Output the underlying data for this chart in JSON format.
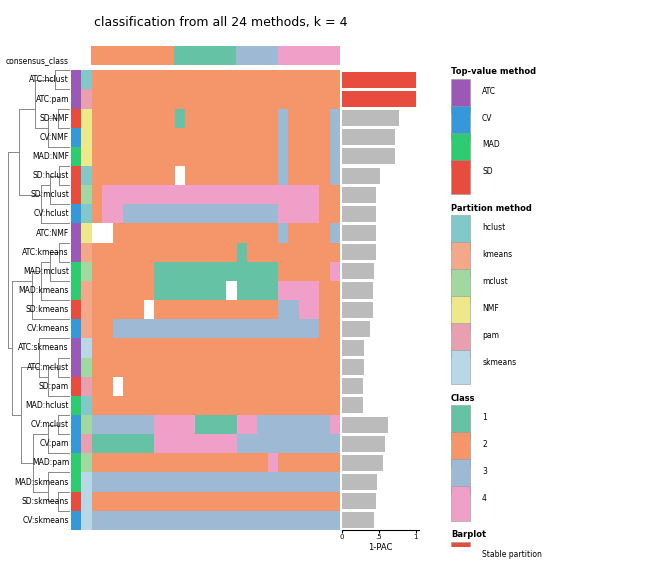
{
  "title": "classification from all 24 methods, k = 4",
  "row_labels": [
    "ATC:hclust",
    "ATC:pam",
    "SD:NMF",
    "CV:NMF",
    "MAD:NMF",
    "SD:hclust",
    "SD:mclust",
    "CV:hclust",
    "ATC:NMF",
    "ATC:kmeans",
    "MAD:mclust",
    "MAD:kmeans",
    "SD:kmeans",
    "CV:kmeans",
    "ATC:skmeans",
    "ATC:mclust",
    "SD:pam",
    "MAD:hclust",
    "CV:mclust",
    "CV:pam",
    "MAD:pam",
    "MAD:skmeans",
    "SD:skmeans",
    "CV:skmeans"
  ],
  "top_value_colors": [
    "#9B59B6",
    "#9B59B6",
    "#E74C3C",
    "#3498DB",
    "#2ECC71",
    "#E74C3C",
    "#E74C3C",
    "#3498DB",
    "#9B59B6",
    "#9B59B6",
    "#2ECC71",
    "#2ECC71",
    "#E74C3C",
    "#3498DB",
    "#9B59B6",
    "#9B59B6",
    "#E74C3C",
    "#2ECC71",
    "#3498DB",
    "#3498DB",
    "#2ECC71",
    "#2ECC71",
    "#E74C3C",
    "#3498DB"
  ],
  "partition_colors": [
    "#82C8C8",
    "#E8A0B0",
    "#EDE88A",
    "#EDE88A",
    "#EDE88A",
    "#82C8C8",
    "#A0D8A0",
    "#82C8C8",
    "#EDE88A",
    "#F4A88A",
    "#A0D8A0",
    "#F4A88A",
    "#F4A88A",
    "#F4A88A",
    "#B8D8E8",
    "#A0D8A0",
    "#E8A0B0",
    "#82C8C8",
    "#A0D8A0",
    "#E8A0B0",
    "#A0D8A0",
    "#B8D8E8",
    "#B8D8E8",
    "#B8D8E8"
  ],
  "class_color_map": {
    "0": "#FFFFFF",
    "1": "#66C2A5",
    "2": "#F4956A",
    "3": "#9EB9D4",
    "4": "#F0A0C8"
  },
  "consensus_row": [
    2,
    2,
    2,
    2,
    2,
    2,
    2,
    2,
    1,
    1,
    1,
    1,
    1,
    1,
    3,
    3,
    3,
    3,
    4,
    4,
    4,
    4,
    4,
    4
  ],
  "heatmap_data": [
    [
      2,
      2,
      2,
      2,
      2,
      2,
      2,
      2,
      2,
      2,
      2,
      2,
      2,
      2,
      2,
      2,
      2,
      2,
      2,
      2,
      2,
      2,
      2,
      2
    ],
    [
      2,
      2,
      2,
      2,
      2,
      2,
      2,
      2,
      2,
      2,
      2,
      2,
      2,
      2,
      2,
      2,
      2,
      2,
      2,
      2,
      2,
      2,
      2,
      2
    ],
    [
      2,
      2,
      2,
      2,
      2,
      2,
      2,
      2,
      1,
      2,
      2,
      2,
      2,
      2,
      2,
      2,
      2,
      2,
      3,
      2,
      2,
      2,
      2,
      3
    ],
    [
      2,
      2,
      2,
      2,
      2,
      2,
      2,
      2,
      2,
      2,
      2,
      2,
      2,
      2,
      2,
      2,
      2,
      2,
      3,
      2,
      2,
      2,
      2,
      3
    ],
    [
      2,
      2,
      2,
      2,
      2,
      2,
      2,
      2,
      2,
      2,
      2,
      2,
      2,
      2,
      2,
      2,
      2,
      2,
      3,
      2,
      2,
      2,
      2,
      3
    ],
    [
      2,
      2,
      2,
      2,
      2,
      2,
      2,
      2,
      0,
      2,
      2,
      2,
      2,
      2,
      2,
      2,
      2,
      2,
      3,
      2,
      2,
      2,
      2,
      3
    ],
    [
      2,
      4,
      4,
      4,
      4,
      4,
      4,
      4,
      4,
      4,
      4,
      4,
      4,
      4,
      4,
      4,
      4,
      4,
      4,
      4,
      4,
      4,
      2,
      2
    ],
    [
      2,
      4,
      4,
      3,
      3,
      3,
      3,
      3,
      3,
      3,
      3,
      3,
      3,
      3,
      3,
      3,
      3,
      3,
      4,
      4,
      4,
      4,
      2,
      2
    ],
    [
      0,
      0,
      2,
      2,
      2,
      2,
      2,
      2,
      2,
      2,
      2,
      2,
      2,
      2,
      2,
      2,
      2,
      2,
      3,
      2,
      2,
      2,
      2,
      3
    ],
    [
      2,
      2,
      2,
      2,
      2,
      2,
      2,
      2,
      2,
      2,
      2,
      2,
      2,
      2,
      1,
      2,
      2,
      2,
      2,
      2,
      2,
      2,
      2,
      2
    ],
    [
      2,
      2,
      2,
      2,
      2,
      2,
      1,
      1,
      1,
      1,
      1,
      1,
      1,
      1,
      1,
      1,
      1,
      1,
      2,
      2,
      2,
      2,
      2,
      4
    ],
    [
      2,
      2,
      2,
      2,
      2,
      2,
      1,
      1,
      1,
      1,
      1,
      1,
      1,
      0,
      1,
      1,
      1,
      1,
      4,
      4,
      4,
      4,
      2,
      2
    ],
    [
      2,
      2,
      2,
      2,
      2,
      0,
      2,
      2,
      2,
      2,
      2,
      2,
      2,
      2,
      2,
      2,
      2,
      2,
      3,
      3,
      4,
      4,
      2,
      2
    ],
    [
      2,
      2,
      3,
      3,
      3,
      3,
      3,
      3,
      3,
      3,
      3,
      3,
      3,
      3,
      3,
      3,
      3,
      3,
      3,
      3,
      3,
      3,
      2,
      2
    ],
    [
      2,
      2,
      2,
      2,
      2,
      2,
      2,
      2,
      2,
      2,
      2,
      2,
      2,
      2,
      2,
      2,
      2,
      2,
      2,
      2,
      2,
      2,
      2,
      2
    ],
    [
      2,
      2,
      2,
      2,
      2,
      2,
      2,
      2,
      2,
      2,
      2,
      2,
      2,
      2,
      2,
      2,
      2,
      2,
      2,
      2,
      2,
      2,
      2,
      2
    ],
    [
      2,
      2,
      0,
      2,
      2,
      2,
      2,
      2,
      2,
      2,
      2,
      2,
      2,
      2,
      2,
      2,
      2,
      2,
      2,
      2,
      2,
      2,
      2,
      2
    ],
    [
      2,
      2,
      2,
      2,
      2,
      2,
      2,
      2,
      2,
      2,
      2,
      2,
      2,
      2,
      2,
      2,
      2,
      2,
      2,
      2,
      2,
      2,
      2,
      2
    ],
    [
      3,
      3,
      3,
      3,
      3,
      3,
      4,
      4,
      4,
      4,
      1,
      1,
      1,
      1,
      4,
      4,
      3,
      3,
      3,
      3,
      3,
      3,
      3,
      4
    ],
    [
      1,
      1,
      1,
      1,
      1,
      1,
      4,
      4,
      4,
      4,
      4,
      4,
      4,
      4,
      3,
      3,
      3,
      3,
      3,
      3,
      3,
      3,
      3,
      3
    ],
    [
      2,
      2,
      2,
      2,
      2,
      2,
      2,
      2,
      2,
      2,
      2,
      2,
      2,
      2,
      2,
      2,
      2,
      4,
      2,
      2,
      2,
      2,
      2,
      2
    ],
    [
      3,
      3,
      3,
      3,
      3,
      3,
      3,
      3,
      3,
      3,
      3,
      3,
      3,
      3,
      3,
      3,
      3,
      3,
      3,
      3,
      3,
      3,
      3,
      3
    ],
    [
      2,
      2,
      2,
      2,
      2,
      2,
      2,
      2,
      2,
      2,
      2,
      2,
      2,
      2,
      2,
      2,
      2,
      2,
      2,
      2,
      2,
      2,
      2,
      2
    ],
    [
      3,
      3,
      3,
      3,
      3,
      3,
      3,
      3,
      3,
      3,
      3,
      3,
      3,
      3,
      3,
      3,
      3,
      3,
      3,
      3,
      3,
      3,
      3,
      3
    ]
  ],
  "pac_values": [
    1.0,
    1.0,
    0.78,
    0.72,
    0.72,
    0.52,
    0.46,
    0.46,
    0.46,
    0.46,
    0.44,
    0.42,
    0.42,
    0.38,
    0.3,
    0.3,
    0.28,
    0.28,
    0.62,
    0.58,
    0.55,
    0.48,
    0.46,
    0.44
  ],
  "pac_stable": [
    true,
    true,
    false,
    false,
    false,
    false,
    false,
    false,
    false,
    false,
    false,
    false,
    false,
    false,
    false,
    false,
    false,
    false,
    false,
    false,
    false,
    false,
    false,
    false
  ],
  "top_value_legend": {
    "ATC": "#9B59B6",
    "CV": "#3498DB",
    "MAD": "#2ECC71",
    "SD": "#E74C3C"
  },
  "partition_legend": {
    "hclust": "#82C8C8",
    "kmeans": "#F4A88A",
    "mclust": "#A0D8A0",
    "NMF": "#EDE88A",
    "pam": "#E8A0B0",
    "skmeans": "#B8D8E8"
  },
  "class_legend": {
    "1": "#66C2A5",
    "2": "#F4956A",
    "3": "#9EB9D4",
    "4": "#F0A0C8"
  }
}
